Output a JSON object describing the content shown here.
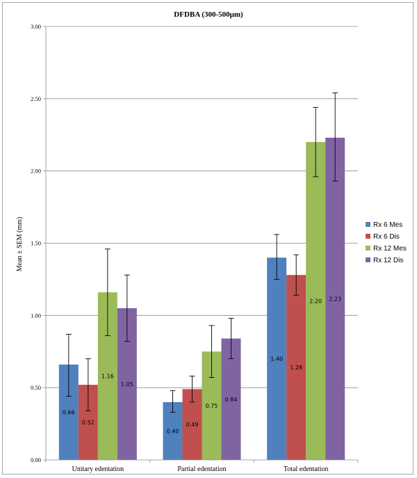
{
  "chart_data": {
    "type": "bar",
    "title": "DFDBA (300-500μm)",
    "ylabel": "Mean ± SEM (mm)",
    "xlabel": "",
    "ylim": [
      0,
      3
    ],
    "yticks": [
      "0.00",
      "0.50",
      "1.00",
      "1.50",
      "2.00",
      "2.50",
      "3.00"
    ],
    "grid": true,
    "legend_position": "right",
    "categories": [
      "Unitary edentation",
      "Partial edentation",
      "Total edentation"
    ],
    "series": [
      {
        "name": "Rx 6 Mes",
        "color": "#4f81bd",
        "values": [
          0.66,
          0.4,
          1.4
        ],
        "labels": [
          "0.66",
          "0.40",
          "1.40"
        ],
        "err_low": [
          0.44,
          0.33,
          1.25
        ],
        "err_high": [
          0.87,
          0.48,
          1.56
        ]
      },
      {
        "name": "Rx 6 Dis",
        "color": "#c0504d",
        "values": [
          0.52,
          0.49,
          1.28
        ],
        "labels": [
          "0.52",
          "0.49",
          "1.28"
        ],
        "err_low": [
          0.34,
          0.4,
          1.14
        ],
        "err_high": [
          0.7,
          0.58,
          1.42
        ]
      },
      {
        "name": "Rx 12 Mes",
        "color": "#9bbb59",
        "values": [
          1.16,
          0.75,
          2.2
        ],
        "labels": [
          "1.16",
          "0.75",
          "2.20"
        ],
        "err_low": [
          0.86,
          0.57,
          1.96
        ],
        "err_high": [
          1.46,
          0.93,
          2.44
        ]
      },
      {
        "name": "Rx 12 Dis",
        "color": "#8064a2",
        "values": [
          1.05,
          0.84,
          2.23
        ],
        "labels": [
          "1.05",
          "0.84",
          "2.23"
        ],
        "err_low": [
          0.82,
          0.7,
          1.93
        ],
        "err_high": [
          1.28,
          0.98,
          2.54
        ]
      }
    ]
  }
}
